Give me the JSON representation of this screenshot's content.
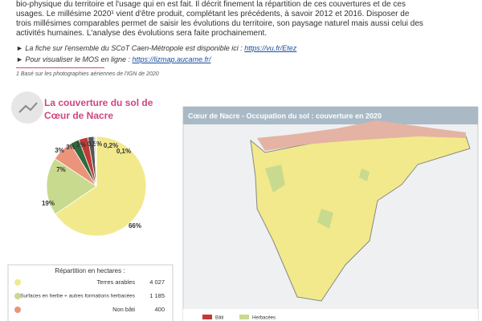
{
  "intro": {
    "lines": [
      "bio-physique du territoire et l'usage qui en est fait. Il décrit finement la répartition de ces couvertures et de ces",
      "usages. Le millésime 2020¹ vient d'être produit, complétant les précédents, à savoir 2012 et 2016.  Disposer de",
      "trois millésimes comparables permet de saisir les évolutions du territoire, son paysage naturel mais aussi celui des",
      "activités humaines. L'analyse des évolutions sera faite prochainement."
    ],
    "links": [
      {
        "text": "La fiche sur l'ensemble du SCoT Caen-Métropole est disponible ici : ",
        "url": "https://vu.fr/Etez"
      },
      {
        "text": "Pour visualiser le MOS en ligne : ",
        "url": "https://lizmap.aucame.fr/"
      }
    ],
    "footnote": "1 Basé sur les photographies aériennes de l'IGN de 2020"
  },
  "section": {
    "title_lines": [
      "La couverture du sol de",
      "Cœur de Nacre"
    ]
  },
  "chart_data": {
    "type": "pie",
    "values": [
      66,
      19,
      7,
      3,
      3,
      2,
      0.5,
      0.2,
      0.1
    ],
    "value_labels": [
      "66%",
      "19%",
      "7%",
      "3%",
      "3%",
      "2%",
      "0,5%",
      "0,2%",
      "0,1%"
    ],
    "colors": [
      "#f2e98c",
      "#c8da8e",
      "#ea947b",
      "#2f6a3a",
      "#c23a36",
      "#555555",
      "#9fb8c8",
      "#d9c3a0",
      "#7a4f8f"
    ]
  },
  "table": {
    "header": "Répartition en hectares :",
    "rows": [
      [
        "Terres arables",
        "4 027"
      ],
      [
        "Surfaces en herbe + autres formations herbacées",
        "1 185"
      ],
      [
        "Non bâti",
        "400"
      ]
    ]
  },
  "map": {
    "title": "Cœur de Nacre - Occupation du sol : couverture en 2020",
    "legend": [
      "Bâti",
      "Herbacées"
    ]
  }
}
